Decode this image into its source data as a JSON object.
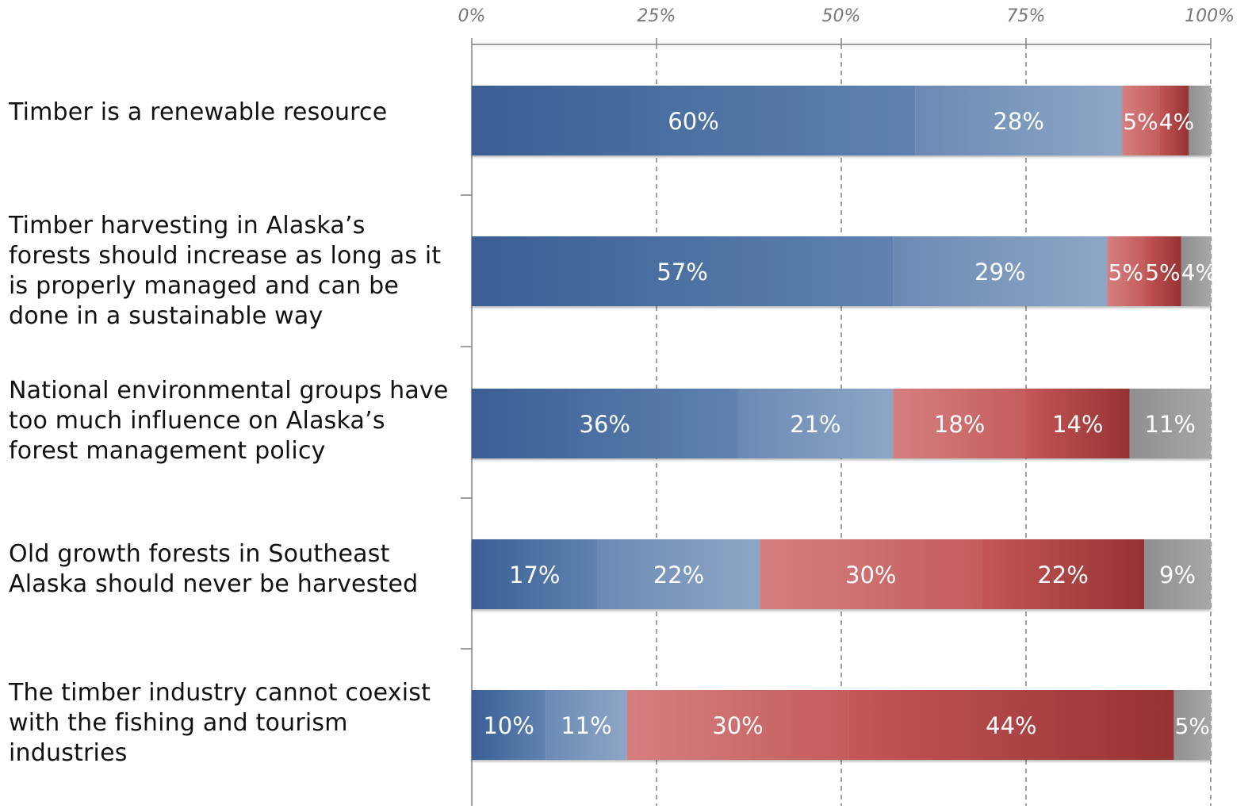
{
  "chart_data": {
    "type": "bar",
    "orientation": "horizontal",
    "stacked": true,
    "percent_stacked": true,
    "categories": [
      "Timber is a renewable resource",
      "Timber harvesting in Alaska’s forests should increase as long as it is properly managed and can be done in a sustainable way",
      "National environmental groups have too much influence on Alaska’s forest management policy",
      "Old growth forests in Southeast Alaska should never be harvested",
      "The timber industry cannot coexist with the fishing and tourism industries"
    ],
    "series": [
      {
        "values": [
          60,
          57,
          36,
          17,
          10
        ],
        "color": "#3a5f95",
        "color_light": "#5f82b0"
      },
      {
        "values": [
          28,
          29,
          21,
          22,
          11
        ],
        "color": "#6a8ab4",
        "color_light": "#8ea6c6"
      },
      {
        "values": [
          5,
          5,
          18,
          30,
          30
        ],
        "color": "#d57f80",
        "color_light": "#c55c5c"
      },
      {
        "values": [
          4,
          5,
          14,
          22,
          44
        ],
        "color": "#c45656",
        "color_light": "#963233"
      },
      {
        "values": [
          3,
          4,
          11,
          9,
          5
        ],
        "color": "#8f8f8f",
        "color_light": "#a7a7a7"
      }
    ],
    "data_labels": [
      [
        "60%",
        "28%",
        "5%",
        "4%",
        ""
      ],
      [
        "57%",
        "29%",
        "5%",
        "5%",
        "4%"
      ],
      [
        "36%",
        "21%",
        "18%",
        "14%",
        "11%"
      ],
      [
        "17%",
        "22%",
        "30%",
        "22%",
        "9%"
      ],
      [
        "10%",
        "11%",
        "30%",
        "44%",
        "5%"
      ]
    ],
    "x_ticks": [
      "0%",
      "25%",
      "50%",
      "75%",
      "100%"
    ],
    "xlim": [
      0,
      100
    ],
    "x_axis_position": "top",
    "grid": "vertical dashed",
    "legend": "none",
    "title": "",
    "xlabel": "",
    "ylabel": ""
  }
}
